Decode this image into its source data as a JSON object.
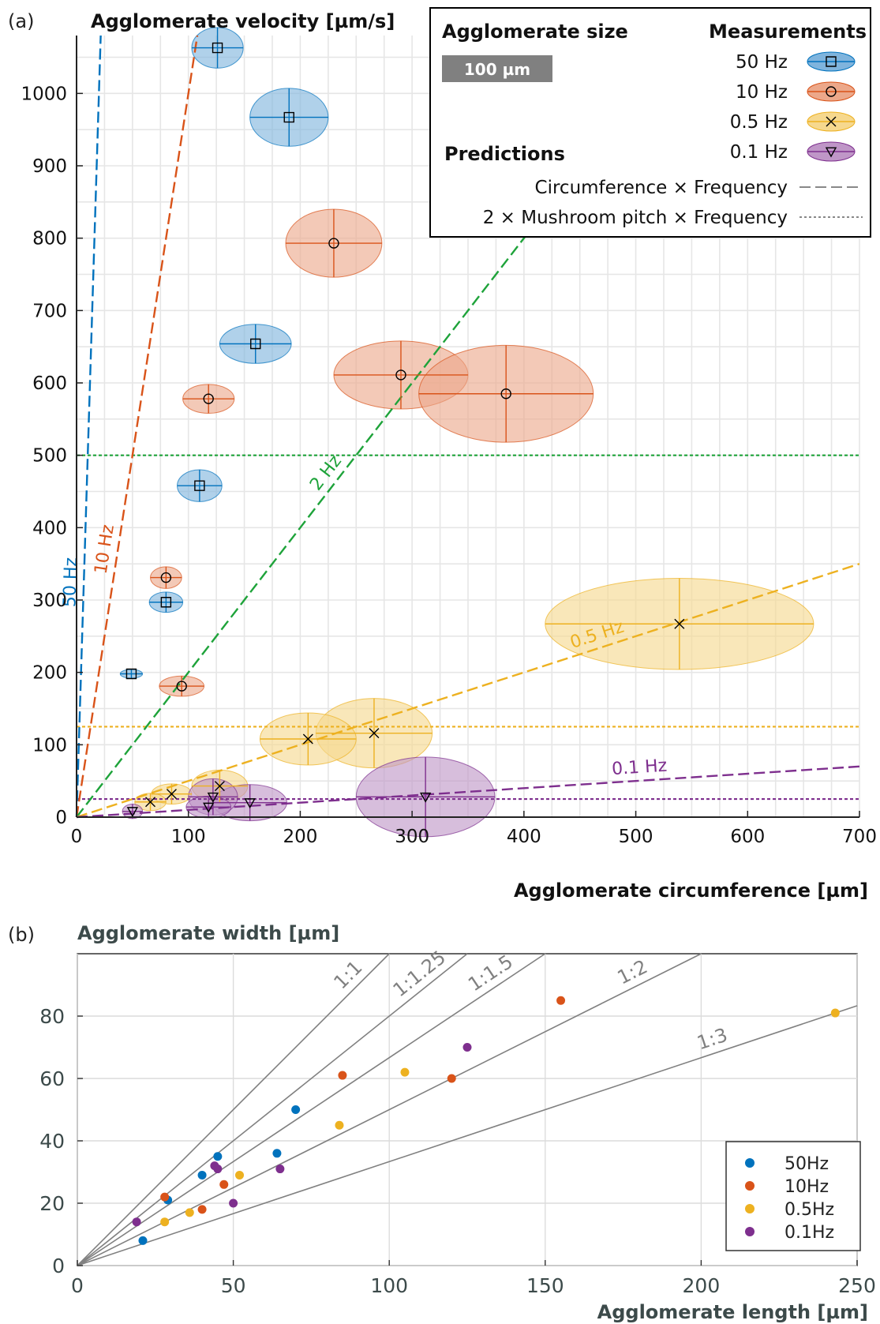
{
  "panels": {
    "a_label": "(a)",
    "b_label": "(b)"
  },
  "chart_data": [
    {
      "type": "scatter",
      "panel": "(a)",
      "ylabel": "Agglomerate velocity [µm/s]",
      "xlabel": "Agglomerate circumference [µm]",
      "xlim": [
        0,
        700
      ],
      "ylim": [
        0,
        1080
      ],
      "xticks": [
        0,
        100,
        200,
        300,
        400,
        500,
        600,
        700
      ],
      "yticks": [
        0,
        100,
        200,
        300,
        400,
        500,
        600,
        700,
        800,
        900,
        1000
      ],
      "grid": true,
      "legend": {
        "placement": "top-right",
        "size_title": "Agglomerate size",
        "size_bar_label": "100 µm",
        "size_bar_value_um": 100,
        "measurements_title": "Measurements",
        "predictions_title": "Predictions",
        "prediction_lines": [
          {
            "label": "Circumference × Frequency",
            "style": "dashed"
          },
          {
            "label": "2 × Mushroom pitch × Frequency",
            "style": "dotted"
          }
        ]
      },
      "series": [
        {
          "name": "50 Hz",
          "color": "#0072BD",
          "fill": "#7fb4dd",
          "marker": "square",
          "points": [
            {
              "x": 126,
              "y": 1063,
              "sx": 23,
              "sy": 28,
              "size": 100
            },
            {
              "x": 190,
              "y": 967,
              "sx": 35,
              "sy": 40,
              "size": 140
            },
            {
              "x": 160,
              "y": 654,
              "sx": 32,
              "sy": 27,
              "size": 130
            },
            {
              "x": 110,
              "y": 458,
              "sx": 20,
              "sy": 22,
              "size": 95
            },
            {
              "x": 80,
              "y": 297,
              "sx": 15,
              "sy": 14,
              "size": 75
            },
            {
              "x": 49,
              "y": 198,
              "sx": 10,
              "sy": 6,
              "size": 45
            }
          ]
        },
        {
          "name": "10 Hz",
          "color": "#D95319",
          "fill": "#eca88a",
          "marker": "circle",
          "points": [
            {
              "x": 230,
              "y": 793,
              "sx": 43,
              "sy": 47,
              "size": 155
            },
            {
              "x": 290,
              "y": 611,
              "sx": 60,
              "sy": 47,
              "size": 210
            },
            {
              "x": 384,
              "y": 585,
              "sx": 78,
              "sy": 67,
              "size": 255
            },
            {
              "x": 118,
              "y": 578,
              "sx": 23,
              "sy": 20,
              "size": 100
            },
            {
              "x": 80,
              "y": 331,
              "sx": 14,
              "sy": 15,
              "size": 75
            },
            {
              "x": 94,
              "y": 181,
              "sx": 20,
              "sy": 14,
              "size": 85
            }
          ]
        },
        {
          "name": "0.5 Hz",
          "color": "#EDB120",
          "fill": "#f6d88e",
          "marker": "x",
          "points": [
            {
              "x": 539,
              "y": 267,
              "sx": 120,
              "sy": 63,
              "size": 330
            },
            {
              "x": 266,
              "y": 116,
              "sx": 52,
              "sy": 48,
              "size": 195
            },
            {
              "x": 207,
              "y": 108,
              "sx": 43,
              "sy": 36,
              "size": 160
            },
            {
              "x": 128,
              "y": 43,
              "sx": 25,
              "sy": 22,
              "size": 100
            },
            {
              "x": 85,
              "y": 32,
              "sx": 18,
              "sy": 14,
              "size": 80
            },
            {
              "x": 66,
              "y": 21,
              "sx": 14,
              "sy": 12,
              "size": 65
            }
          ]
        },
        {
          "name": "0.1 Hz",
          "color": "#7E2F8E",
          "fill": "#bf96c7",
          "marker": "triangle-down",
          "points": [
            {
              "x": 312,
              "y": 28,
              "sx": 62,
              "sy": 55,
              "size": 230
            },
            {
              "x": 155,
              "y": 20,
              "sx": 33,
              "sy": 25,
              "size": 125
            },
            {
              "x": 122,
              "y": 28,
              "sx": 22,
              "sy": 25,
              "size": 100
            },
            {
              "x": 118,
              "y": 14,
              "sx": 20,
              "sy": 15,
              "size": 95
            },
            {
              "x": 50,
              "y": 8,
              "sx": 9,
              "sy": 10,
              "size": 45
            }
          ]
        }
      ],
      "prediction_lines": [
        {
          "freq_hz": 50,
          "label": "50 Hz",
          "color": "#0072BD",
          "slope": 50
        },
        {
          "freq_hz": 10,
          "label": "10 Hz",
          "color": "#D95319",
          "slope": 10
        },
        {
          "freq_hz": 2,
          "label": "2 Hz",
          "color": "#1EA33A",
          "slope": 2
        },
        {
          "freq_hz": 0.5,
          "label": "0.5 Hz",
          "color": "#EDB120",
          "slope": 0.5
        },
        {
          "freq_hz": 0.1,
          "label": "0.1 Hz",
          "color": "#7E2F8E",
          "slope": 0.1
        }
      ],
      "pitch_lines": [
        {
          "y": 500,
          "color": "#1EA33A"
        },
        {
          "y": 125,
          "color": "#EDB120"
        },
        {
          "y": 25,
          "color": "#7E2F8E"
        }
      ]
    },
    {
      "type": "scatter",
      "panel": "(b)",
      "ylabel": "Agglomerate width [µm]",
      "xlabel": "Agglomerate length [µm]",
      "xlim": [
        0,
        250
      ],
      "ylim": [
        0,
        100
      ],
      "xticks": [
        0,
        50,
        100,
        150,
        200,
        250
      ],
      "yticks": [
        0,
        20,
        40,
        60,
        80
      ],
      "grid": true,
      "legend": {
        "placement": "bottom-right"
      },
      "ratio_lines": [
        {
          "label": "1:1",
          "slope": 1
        },
        {
          "label": "1:1.25",
          "slope": 0.8
        },
        {
          "label": "1:1.5",
          "slope": 0.6667
        },
        {
          "label": "1:2",
          "slope": 0.5
        },
        {
          "label": "1:3",
          "slope": 0.3333
        }
      ],
      "series": [
        {
          "name": "50Hz",
          "color": "#0072BD",
          "x": [
            21,
            29,
            40,
            45,
            64,
            70
          ],
          "y": [
            8,
            21,
            29,
            35,
            36,
            50
          ]
        },
        {
          "name": "10Hz",
          "color": "#D95319",
          "x": [
            28,
            40,
            47,
            85,
            120,
            155
          ],
          "y": [
            22,
            18,
            26,
            61,
            60,
            85
          ]
        },
        {
          "name": "0.5Hz",
          "color": "#EDB120",
          "x": [
            28,
            36,
            52,
            84,
            105,
            243
          ],
          "y": [
            14,
            17,
            29,
            45,
            62,
            81
          ]
        },
        {
          "name": "0.1Hz",
          "color": "#7E2F8E",
          "x": [
            19,
            44,
            45,
            50,
            65,
            125
          ],
          "y": [
            14,
            32,
            31,
            20,
            31,
            70
          ]
        }
      ]
    }
  ]
}
